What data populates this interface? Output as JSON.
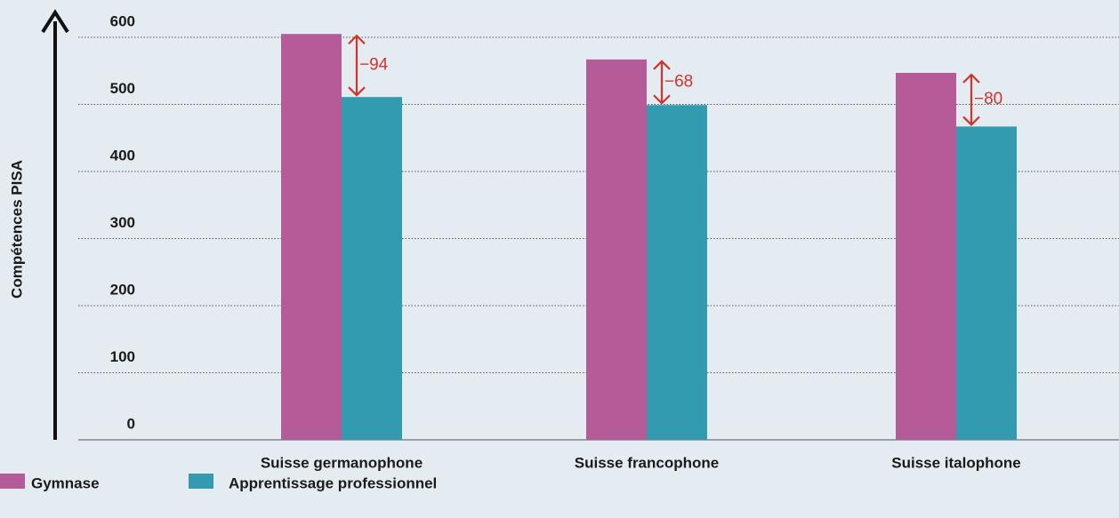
{
  "chart_data": {
    "type": "bar",
    "y_label": "Compétences PISA",
    "categories": [
      "Suisse germanophone",
      "Suisse francophone",
      "Suisse italophone"
    ],
    "series": [
      {
        "name": "Gymnase",
        "color": "#b55b97",
        "values": [
          605,
          567,
          547
        ]
      },
      {
        "name": "Apprentissage professionnel",
        "color": "#339bb0",
        "values": [
          511,
          499,
          467
        ]
      }
    ],
    "annotations": [
      "−94",
      "−68",
      "−80"
    ],
    "annotation_color": "#d2342c",
    "ylim": [
      0,
      600
    ],
    "yticks": [
      0,
      100,
      200,
      300,
      400,
      500,
      600
    ],
    "grid": true
  }
}
